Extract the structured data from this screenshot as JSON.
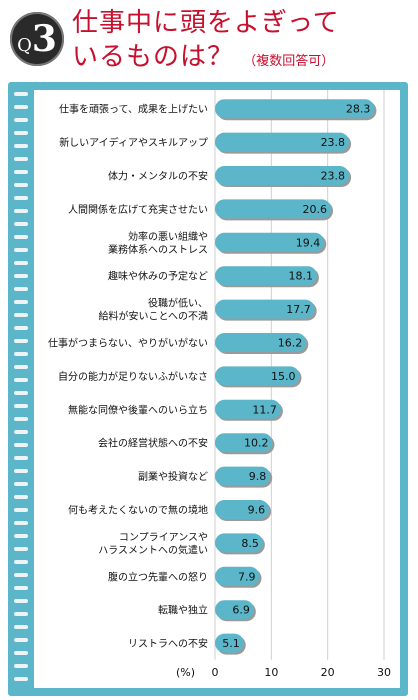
{
  "header": {
    "q_prefix": "Q",
    "q_number": "3",
    "title_line1": "仕事中に頭をよぎって",
    "title_line2": "いるものは？",
    "subtitle": "（複数回答可）"
  },
  "colors": {
    "title": "#c8102e",
    "board": "#5bb6c9",
    "bar": "#5bb6c9",
    "bar_shadow": "#9a9a9a",
    "badge": "#2a2a2a"
  },
  "chart_data": {
    "type": "bar",
    "orientation": "horizontal",
    "categories": [
      [
        "仕事を頑張って、成果を上げたい"
      ],
      [
        "新しいアイディアやスキルアップ"
      ],
      [
        "体力・メンタルの不安"
      ],
      [
        "人間関係を広げて充実させたい"
      ],
      [
        "効率の悪い組織や",
        "業務体系へのストレス"
      ],
      [
        "趣味や休みの予定など"
      ],
      [
        "役職が低い、",
        "給料が安いことへの不満"
      ],
      [
        "仕事がつまらない、やりがいがない"
      ],
      [
        "自分の能力が足りないふがいなさ"
      ],
      [
        "無能な同僚や後輩へのいら立ち"
      ],
      [
        "会社の経営状態への不安"
      ],
      [
        "副業や投資など"
      ],
      [
        "何も考えたくないので無の境地"
      ],
      [
        "コンプライアンスや",
        "ハラスメントへの気遣い"
      ],
      [
        "腹の立つ先輩への怒り"
      ],
      [
        "転職や独立"
      ],
      [
        "リストラへの不安"
      ]
    ],
    "values": [
      28.3,
      23.8,
      23.8,
      20.6,
      19.4,
      18.1,
      17.7,
      16.2,
      15.0,
      11.7,
      10.2,
      9.8,
      9.6,
      8.5,
      7.9,
      6.9,
      5.1
    ],
    "value_labels": [
      "28.3",
      "23.8",
      "23.8",
      "20.6",
      "19.4",
      "18.1",
      "17.7",
      "16.2",
      "15.0",
      "11.7",
      "10.2",
      "9.8",
      "9.6",
      "8.5",
      "7.9",
      "6.9",
      "5.1"
    ],
    "xlim": [
      0,
      30
    ],
    "xticks": [
      "0",
      "10",
      "20",
      "30"
    ],
    "xlabel": "(%)",
    "grid": true
  }
}
